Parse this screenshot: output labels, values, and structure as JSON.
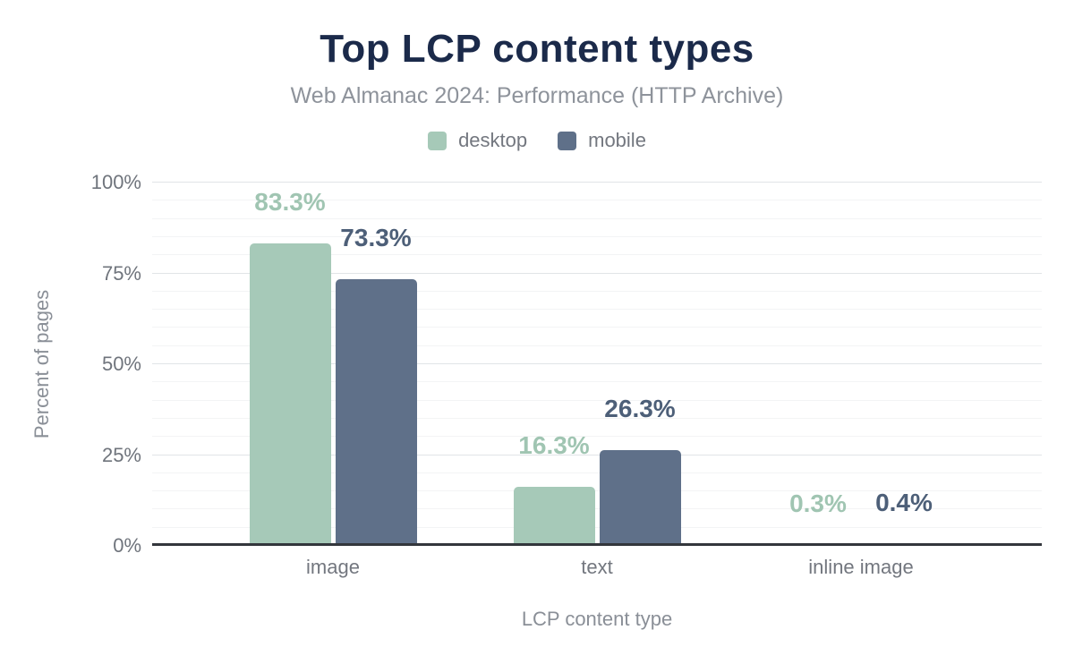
{
  "chart_data": {
    "type": "bar",
    "title": "Top LCP content types",
    "subtitle": "Web Almanac 2024: Performance (HTTP Archive)",
    "xlabel": "LCP content type",
    "ylabel": "Percent of pages",
    "categories": [
      "image",
      "text",
      "inline image"
    ],
    "series": [
      {
        "name": "desktop",
        "color": "#a6c9b8",
        "label_color": "#a0c5b2",
        "values": [
          83.3,
          16.3,
          0.3
        ],
        "value_labels": [
          "83.3%",
          "16.3%",
          "0.3%"
        ]
      },
      {
        "name": "mobile",
        "color": "#5f7089",
        "label_color": "#4d5f78",
        "values": [
          73.3,
          26.3,
          0.4
        ],
        "value_labels": [
          "73.3%",
          "26.3%",
          "0.4%"
        ]
      }
    ],
    "ylim": [
      0,
      100
    ],
    "ytick_values": [
      0,
      25,
      50,
      75,
      100
    ],
    "yticks": [
      "0%",
      "25%",
      "50%",
      "75%",
      "100%"
    ],
    "grid": {
      "on": true,
      "major_interval": 25,
      "minor_interval": 5
    },
    "legend_position": "top",
    "colors": {
      "title": "#1b2a4a",
      "subtitle": "#8e939b",
      "tick_text": "#6f747c",
      "axis_title_text": "#8a8f97",
      "axis_line": "#33363c",
      "grid_major": "#e1e4e7",
      "grid_minor": "#f3f4f5",
      "background": "#ffffff"
    }
  }
}
